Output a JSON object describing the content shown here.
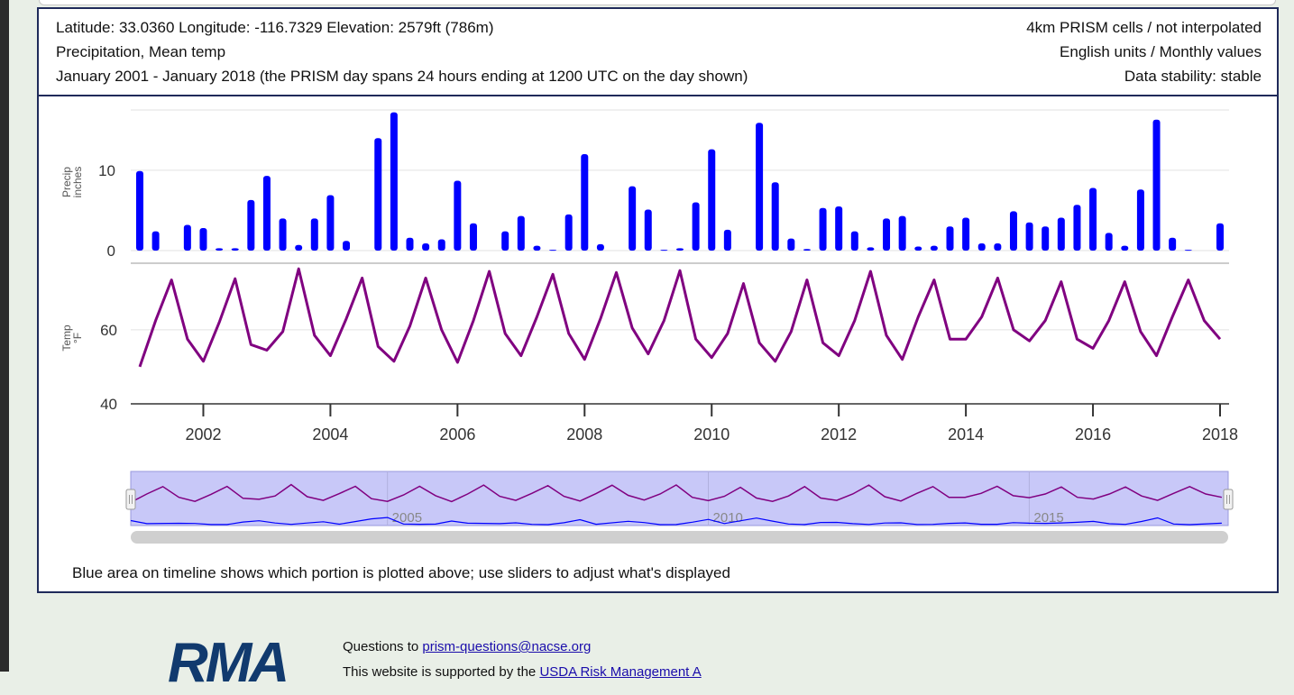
{
  "info": {
    "line1_left": "Latitude: 33.0360   Longitude: -116.7329   Elevation: 2579ft (786m)",
    "line2_left": "Precipitation, Mean temp",
    "line3_left": "January 2001 - January 2018 (the PRISM day spans 24 hours ending at 1200 UTC on the day shown)",
    "line1_right": "4km PRISM cells / not interpolated",
    "line2_right": "English units / Monthly values",
    "line3_right": "Data stability: stable"
  },
  "caption": "Blue area on timeline shows which portion is plotted above; use sliders to adjust what's displayed",
  "footer": {
    "logo_text": "RMA",
    "questions_prefix": "Questions to ",
    "questions_email": "prism-questions@nacse.org",
    "supported_prefix": "This website is supported by the ",
    "supported_link": "USDA Risk Management A"
  },
  "colors": {
    "precip": "#0000ff",
    "temp": "#800080",
    "timeline_fill": "#c8c8f8",
    "border": "#1f2a5a"
  },
  "chart_data": [
    {
      "type": "bar",
      "name": "precip-panel",
      "ylabel": "Precip\ninches",
      "ylim": [
        0,
        17.5
      ],
      "yticks": [
        0,
        10
      ],
      "series": [
        {
          "name": "",
          "x": [
            2001.0,
            2001.25,
            2001.75,
            2002.0,
            2002.25,
            2002.5,
            2002.75,
            2003.0,
            2003.25,
            2003.5,
            2003.75,
            2004.0,
            2004.25,
            2004.75,
            2005.0,
            2005.25,
            2005.5,
            2005.75,
            2006.0,
            2006.25,
            2006.75,
            2007.0,
            2007.25,
            2007.5,
            2007.75,
            2008.0,
            2008.25,
            2008.75,
            2009.0,
            2009.25,
            2009.5,
            2009.75,
            2010.0,
            2010.25,
            2010.75,
            2011.0,
            2011.25,
            2011.5,
            2011.75,
            2012.0,
            2012.25,
            2012.5,
            2012.75,
            2013.0,
            2013.25,
            2013.5,
            2013.75,
            2014.0,
            2014.25,
            2014.5,
            2014.75,
            2015.0,
            2015.25,
            2015.5,
            2015.75,
            2016.0,
            2016.25,
            2016.5,
            2016.75,
            2017.0,
            2017.25,
            2017.5,
            2018.0
          ],
          "values": [
            9.9,
            2.4,
            3.2,
            2.8,
            0.3,
            0.3,
            6.3,
            9.3,
            4.0,
            0.7,
            4.0,
            6.9,
            1.2,
            14.0,
            17.2,
            1.6,
            0.9,
            1.4,
            8.7,
            3.4,
            2.4,
            4.3,
            0.6,
            0.1,
            4.5,
            12.0,
            0.8,
            8.0,
            5.1,
            0.1,
            0.3,
            6.0,
            12.6,
            2.6,
            15.9,
            8.5,
            1.5,
            0.2,
            5.3,
            5.5,
            2.4,
            0.4,
            4.0,
            4.3,
            0.5,
            0.6,
            3.0,
            4.1,
            0.9,
            0.9,
            4.9,
            3.5,
            3.0,
            4.1,
            5.7,
            7.8,
            2.2,
            0.6,
            7.6,
            16.3,
            1.6,
            0.1,
            3.4
          ]
        }
      ]
    },
    {
      "type": "line",
      "name": "temp-panel",
      "ylabel": "Temp\n°F",
      "ylim": [
        40,
        78
      ],
      "yticks": [
        40,
        60
      ],
      "series": [
        {
          "name": "",
          "x": [
            2001.0,
            2001.25,
            2001.5,
            2001.75,
            2002.0,
            2002.25,
            2002.5,
            2002.75,
            2003.0,
            2003.25,
            2003.5,
            2003.75,
            2004.0,
            2004.25,
            2004.5,
            2004.75,
            2005.0,
            2005.25,
            2005.5,
            2005.75,
            2006.0,
            2006.25,
            2006.5,
            2006.75,
            2007.0,
            2007.25,
            2007.5,
            2007.75,
            2008.0,
            2008.25,
            2008.5,
            2008.75,
            2009.0,
            2009.25,
            2009.5,
            2009.75,
            2010.0,
            2010.25,
            2010.5,
            2010.75,
            2011.0,
            2011.25,
            2011.5,
            2011.75,
            2012.0,
            2012.25,
            2012.5,
            2012.75,
            2013.0,
            2013.25,
            2013.5,
            2013.75,
            2014.0,
            2014.25,
            2014.5,
            2014.75,
            2015.0,
            2015.25,
            2015.5,
            2015.75,
            2016.0,
            2016.25,
            2016.5,
            2016.75,
            2017.0,
            2017.25,
            2017.5,
            2017.75,
            2018.0
          ],
          "values": [
            50.0,
            62.5,
            73.5,
            57.5,
            51.5,
            62.0,
            73.8,
            56.0,
            54.5,
            59.5,
            76.5,
            58.5,
            53.0,
            63.0,
            74.0,
            55.5,
            51.5,
            61.0,
            74.0,
            60.0,
            51.2,
            62.5,
            75.8,
            59.0,
            53.0,
            63.5,
            75.0,
            59.0,
            52.0,
            63.0,
            75.5,
            60.5,
            53.5,
            62.5,
            76.0,
            57.5,
            52.5,
            59.0,
            72.5,
            56.5,
            51.5,
            59.5,
            73.5,
            56.5,
            53.0,
            62.5,
            75.8,
            58.5,
            52.0,
            63.5,
            73.5,
            57.5,
            57.5,
            63.5,
            74.0,
            60.0,
            57.0,
            62.5,
            73.0,
            57.5,
            55.0,
            62.5,
            73.0,
            59.5,
            53.0,
            63.5,
            73.5,
            62.5,
            57.5
          ]
        }
      ],
      "xticks": [
        "2002",
        "2004",
        "2006",
        "2008",
        "2010",
        "2012",
        "2014",
        "2016",
        "2018"
      ]
    },
    {
      "type": "line",
      "name": "timeline-panel",
      "xrange": [
        2001,
        2018.1
      ],
      "xticks": [
        "2005",
        "2010",
        "2015"
      ],
      "selected_range": [
        2001,
        2018.1
      ]
    }
  ]
}
